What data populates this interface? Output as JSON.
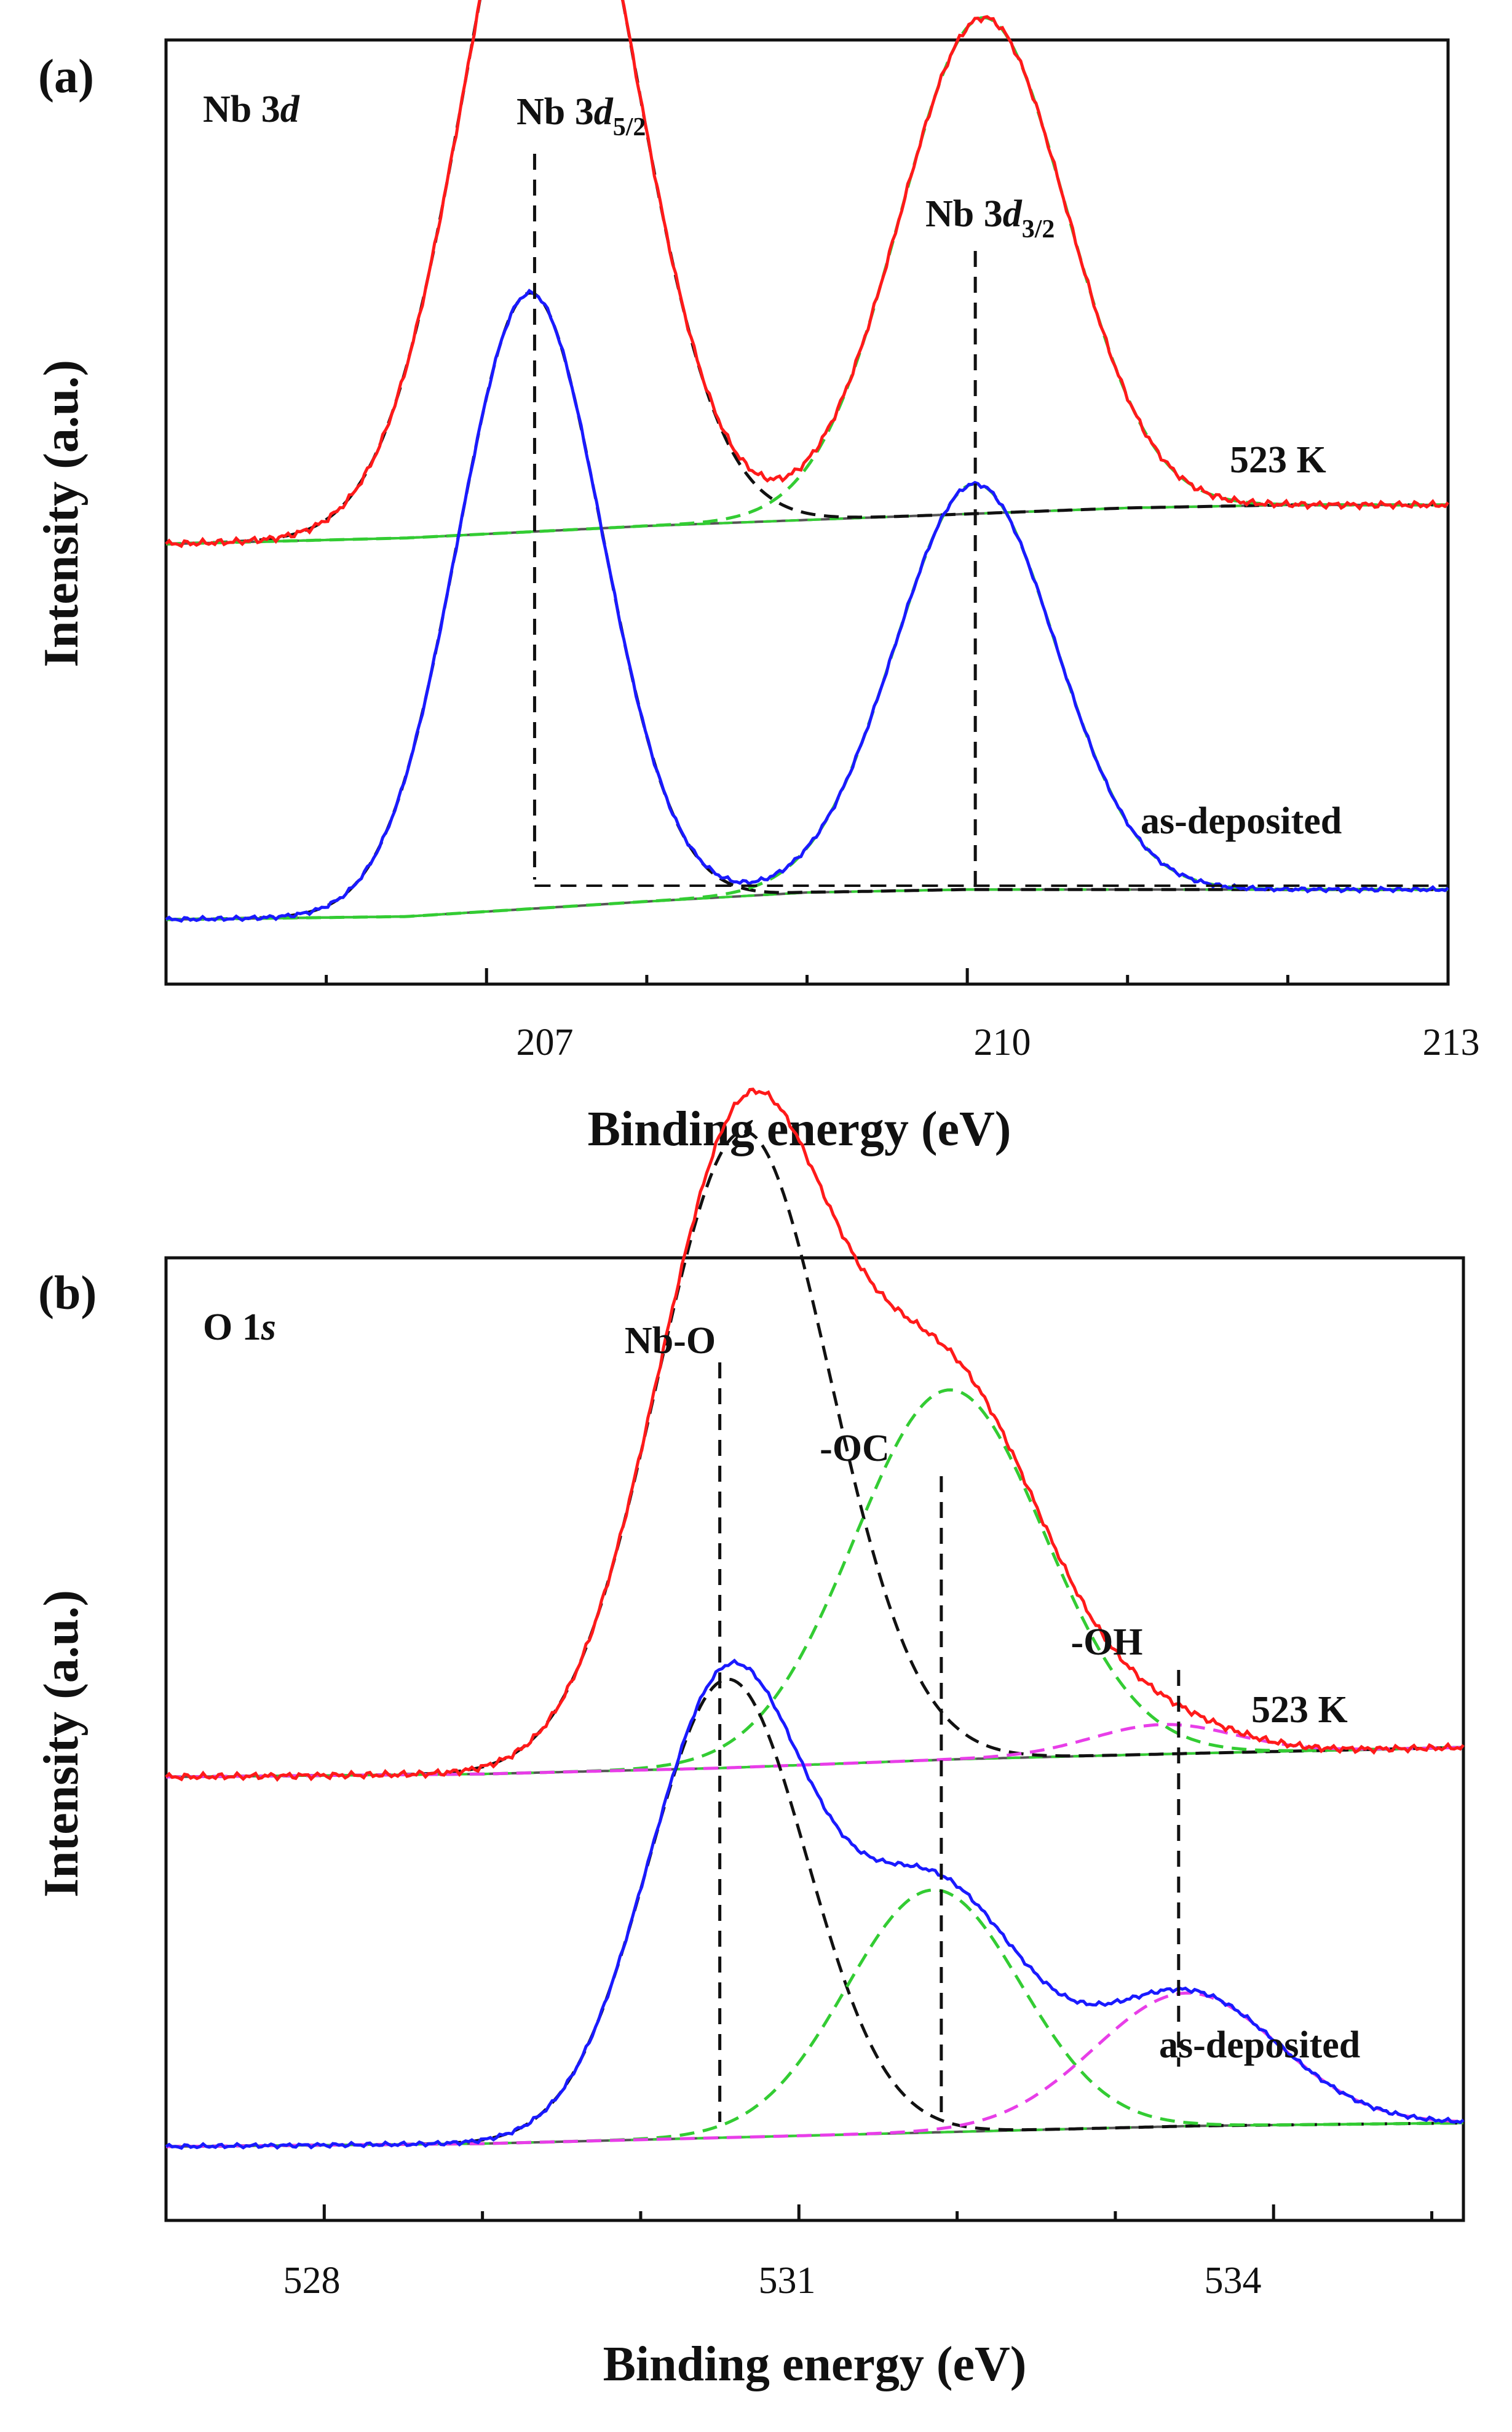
{
  "colors": {
    "red": "#ff1a1a",
    "blue": "#1a1aff",
    "green": "#33cc33",
    "magenta": "#e83ee8",
    "black": "#111111",
    "gray": "#555555"
  },
  "chart_data": [
    {
      "type": "line",
      "panel_label": "(a)",
      "title": "Nb 3d",
      "title_parts": {
        "main": "Nb 3",
        "italic": "d"
      },
      "xlabel": "Binding energy (eV)",
      "ylabel": "Intensity (a.u.)",
      "xlim": [
        205.0,
        213.0
      ],
      "x_tick_labels": [
        "207",
        "210",
        "213"
      ],
      "x_ticks": [
        207,
        210,
        213
      ],
      "x_minor_ticks": [
        206,
        208,
        209,
        211,
        212
      ],
      "peak_labels": [
        {
          "main": "Nb 3",
          "italic": "d",
          "sub": "5/2",
          "x": 207.3
        },
        {
          "main": "Nb 3",
          "italic": "d",
          "sub": "3/2",
          "x": 210.05
        }
      ],
      "curve_labels": [
        "523 K",
        "as-deposited"
      ],
      "series": [
        {
          "name": "523 K",
          "color": "red",
          "offset": 1.0,
          "baseline": [
            [
              205.0,
              0.0
            ],
            [
              206.5,
              0.02
            ],
            [
              208.0,
              0.06
            ],
            [
              209.5,
              0.09
            ],
            [
              211.0,
              0.12
            ],
            [
              212.0,
              0.13
            ],
            [
              213.0,
              0.13
            ]
          ],
          "peaks": [
            {
              "component": "Nb 3d5/2",
              "center": 207.4,
              "height": 2.55,
              "sigma": 0.52,
              "fit_color": "black"
            },
            {
              "component": "Nb 3d3/2",
              "center": 210.1,
              "height": 1.65,
              "sigma": 0.52,
              "fit_color": "green"
            }
          ]
        },
        {
          "name": "as-deposited",
          "color": "blue",
          "offset": 0.0,
          "baseline": [
            [
              205.0,
              0.0
            ],
            [
              206.5,
              0.01
            ],
            [
              208.0,
              0.06
            ],
            [
              209.0,
              0.09
            ],
            [
              210.0,
              0.1
            ],
            [
              211.0,
              0.1
            ],
            [
              213.0,
              0.1
            ]
          ],
          "peaks": [
            {
              "component": "Nb 3d5/2",
              "center": 207.27,
              "height": 2.05,
              "sigma": 0.45,
              "fit_color": "black"
            },
            {
              "component": "Nb 3d3/2",
              "center": 210.05,
              "height": 1.35,
              "sigma": 0.5,
              "fit_color": "green"
            }
          ]
        }
      ],
      "y_range_internal": [
        -0.35,
        3.15
      ],
      "vlines": [
        207.3,
        210.05
      ]
    },
    {
      "type": "line",
      "panel_label": "(b)",
      "title": "O 1s",
      "title_parts": {
        "main": "O 1",
        "italic": "s"
      },
      "xlabel": "Binding energy (eV)",
      "ylabel": "Intensity (a.u.)",
      "xlim": [
        527.0,
        535.2
      ],
      "x_tick_labels": [
        "528",
        "531",
        "534"
      ],
      "x_ticks": [
        528,
        531,
        534
      ],
      "x_minor_ticks": [
        529,
        530,
        532,
        533,
        535
      ],
      "peak_labels": [
        {
          "main": "Nb-O",
          "italic": "",
          "sub": "",
          "x": 530.5
        },
        {
          "main": "-OC",
          "italic": "",
          "sub": "",
          "x": 531.9
        },
        {
          "main": "-OH",
          "italic": "",
          "sub": "",
          "x": 533.4
        }
      ],
      "curve_labels": [
        "523 K",
        "as-deposited"
      ],
      "series": [
        {
          "name": "523 K",
          "color": "red",
          "offset": 1.0,
          "baseline": [
            [
              527.0,
              0.0
            ],
            [
              529.0,
              0.01
            ],
            [
              530.5,
              0.03
            ],
            [
              532.0,
              0.06
            ],
            [
              533.5,
              0.08
            ],
            [
              535.2,
              0.1
            ]
          ],
          "peaks": [
            {
              "component": "Nb-O",
              "center": 530.65,
              "height": 2.15,
              "sigma": 0.55,
              "fit_color": "black"
            },
            {
              "component": "-OC",
              "center": 531.95,
              "height": 1.25,
              "sigma": 0.6,
              "fit_color": "green"
            },
            {
              "component": "-OH",
              "center": 533.3,
              "height": 0.1,
              "sigma": 0.45,
              "fit_color": "magenta"
            }
          ]
        },
        {
          "name": "as-deposited",
          "color": "blue",
          "offset": 0.0,
          "baseline": [
            [
              527.0,
              0.0
            ],
            [
              529.0,
              0.01
            ],
            [
              530.5,
              0.03
            ],
            [
              532.0,
              0.05
            ],
            [
              533.5,
              0.07
            ],
            [
              535.2,
              0.08
            ]
          ],
          "peaks": [
            {
              "component": "Nb-O",
              "center": 530.55,
              "height": 1.55,
              "sigma": 0.5,
              "fit_color": "black"
            },
            {
              "component": "-OC",
              "center": 531.85,
              "height": 0.82,
              "sigma": 0.55,
              "fit_color": "green"
            },
            {
              "component": "-OH",
              "center": 533.45,
              "height": 0.45,
              "sigma": 0.58,
              "fit_color": "magenta"
            }
          ]
        }
      ],
      "y_range_internal": [
        -0.25,
        3.3
      ],
      "vlines": [
        530.5,
        531.9,
        533.4
      ]
    }
  ]
}
